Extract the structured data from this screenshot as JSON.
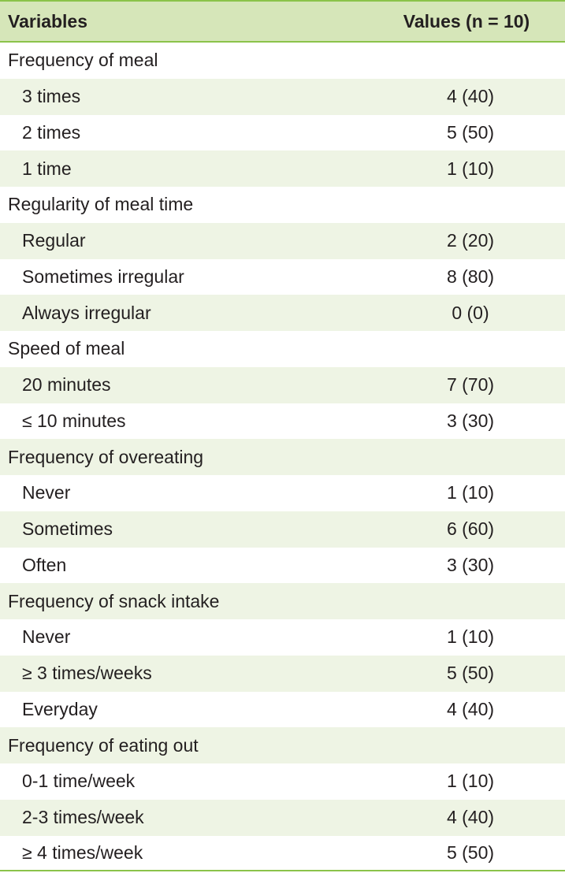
{
  "header": {
    "variables": "Variables",
    "values": "Values (n = 10)"
  },
  "groups": [
    {
      "label": "Frequency of meal",
      "rows": [
        {
          "label": "3 times",
          "value": "4 (40)"
        },
        {
          "label": "2 times",
          "value": "5 (50)"
        },
        {
          "label": "1 time",
          "value": "1 (10)"
        }
      ]
    },
    {
      "label": "Regularity of meal time",
      "rows": [
        {
          "label": "Regular",
          "value": "2 (20)"
        },
        {
          "label": "Sometimes irregular",
          "value": "8 (80)"
        },
        {
          "label": "Always irregular",
          "value": "0 (0)"
        }
      ]
    },
    {
      "label": "Speed of meal",
      "rows": [
        {
          "label": "20 minutes",
          "value": "7 (70)"
        },
        {
          "label": "≤ 10 minutes",
          "value": "3 (30)"
        }
      ]
    },
    {
      "label": "Frequency of overeating",
      "rows": [
        {
          "label": "Never",
          "value": "1 (10)"
        },
        {
          "label": "Sometimes",
          "value": "6 (60)"
        },
        {
          "label": "Often",
          "value": "3 (30)"
        }
      ]
    },
    {
      "label": "Frequency of snack intake",
      "rows": [
        {
          "label": "Never",
          "value": "1 (10)"
        },
        {
          "label": "≥ 3 times/weeks",
          "value": "5 (50)"
        },
        {
          "label": "Everyday",
          "value": "4 (40)"
        }
      ]
    },
    {
      "label": "Frequency of eating out",
      "rows": [
        {
          "label": "0-1 time/week",
          "value": "1 (10)"
        },
        {
          "label": "2-3 times/week",
          "value": "4 (40)"
        },
        {
          "label": "≥ 4 times/week",
          "value": "5 (50)"
        }
      ]
    }
  ]
}
